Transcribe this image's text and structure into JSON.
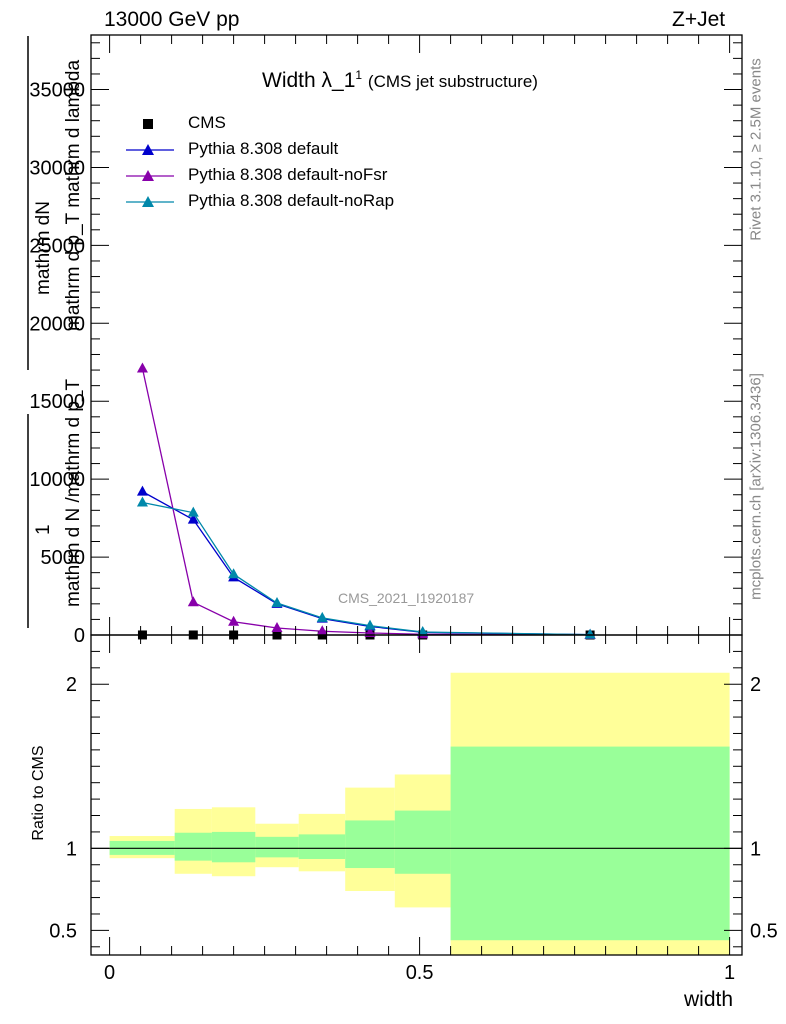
{
  "header": {
    "energy": "13000 GeV pp",
    "process": "Z+Jet"
  },
  "side_text": {
    "rivet": "Rivet 3.1.10, ≥ 2.5M events",
    "mcplots": "mcplots.cern.ch [arXiv:1306.3436]"
  },
  "watermark": "CMS_2021_I1920187",
  "upper_ylabel": {
    "numerator_1": "1",
    "numerator_2": "mathrm dN",
    "denominator_1": "mathrm d N /mathrm d p_T",
    "denominator_2": "mathrm d p_T mathrm d lambda",
    "unused": ""
  },
  "chart_data": [
    {
      "type": "line",
      "title": "Width λ_1",
      "title_superscript": "1",
      "subtitle": "(CMS jet substructure)",
      "xlabel": "width",
      "ylabel": "1 / (mathrm d N /mathrm d p_T) · mathrm dN / (mathrm d p_T mathrm d lambda)",
      "xlim": [
        -0.03,
        1.02
      ],
      "ylim": [
        0,
        38500
      ],
      "yticks": [
        0,
        5000,
        10000,
        15000,
        20000,
        25000,
        30000,
        35000
      ],
      "yticklabels": [
        "0",
        "5000",
        "10000",
        "15000",
        "20000",
        "25000",
        "30000",
        "35000"
      ],
      "legend_position": "top-left",
      "bins": [
        0,
        0.105,
        0.165,
        0.235,
        0.305,
        0.38,
        0.46,
        0.55,
        1.0
      ],
      "series": [
        {
          "name": "CMS",
          "marker": "square",
          "color": "#000000",
          "x": [
            0.053,
            0.135,
            0.2,
            0.27,
            0.343,
            0.42,
            0.505,
            0.775
          ],
          "y": [
            2.6,
            2.0,
            1.3,
            0.75,
            0.42,
            0.23,
            0.12,
            0.02
          ]
        },
        {
          "name": "Pythia 8.308 default",
          "marker": "triangle",
          "color": "#0000cc",
          "x": [
            0.053,
            0.135,
            0.2,
            0.27,
            0.343,
            0.42,
            0.505,
            0.775
          ],
          "y": [
            9200,
            7400,
            3700,
            2000,
            1050,
            550,
            170,
            20
          ]
        },
        {
          "name": "Pythia 8.308 default-noFsr",
          "marker": "triangle",
          "color": "#8800aa",
          "x": [
            0.053,
            0.135,
            0.2,
            0.27,
            0.343,
            0.42,
            0.505,
            0.775
          ],
          "y": [
            17100,
            2100,
            850,
            450,
            240,
            130,
            50,
            8
          ]
        },
        {
          "name": "Pythia 8.308 default-noRap",
          "marker": "triangle",
          "color": "#0088aa",
          "x": [
            0.053,
            0.135,
            0.2,
            0.27,
            0.343,
            0.42,
            0.505,
            0.775
          ],
          "y": [
            8500,
            7850,
            3900,
            2050,
            1100,
            600,
            190,
            22
          ]
        }
      ]
    },
    {
      "type": "area",
      "ylabel": "Ratio to CMS",
      "xlabel": "width",
      "xlim": [
        -0.03,
        1.02
      ],
      "ylim": [
        0.35,
        2.3
      ],
      "yticks": [
        0.5,
        1,
        2
      ],
      "yticklabels": [
        "0.5",
        "1",
        "2"
      ],
      "xticks": [
        0,
        0.5,
        1
      ],
      "xticklabels": [
        "0",
        "0.5",
        "1"
      ],
      "reference_line": 1,
      "bins": [
        0,
        0.105,
        0.165,
        0.235,
        0.305,
        0.38,
        0.46,
        0.55,
        1.0
      ],
      "bands": [
        {
          "name": "stat",
          "color": "#99ff99",
          "low": [
            0.96,
            0.925,
            0.915,
            0.945,
            0.935,
            0.88,
            0.845,
            0.44
          ],
          "high": [
            1.045,
            1.095,
            1.1,
            1.07,
            1.085,
            1.17,
            1.23,
            1.62
          ]
        },
        {
          "name": "total",
          "color": "#ffff99",
          "low": [
            0.94,
            0.845,
            0.83,
            0.885,
            0.86,
            0.74,
            0.64,
            0.32
          ],
          "high": [
            1.075,
            1.24,
            1.25,
            1.15,
            1.21,
            1.37,
            1.45,
            2.07
          ]
        }
      ]
    }
  ]
}
